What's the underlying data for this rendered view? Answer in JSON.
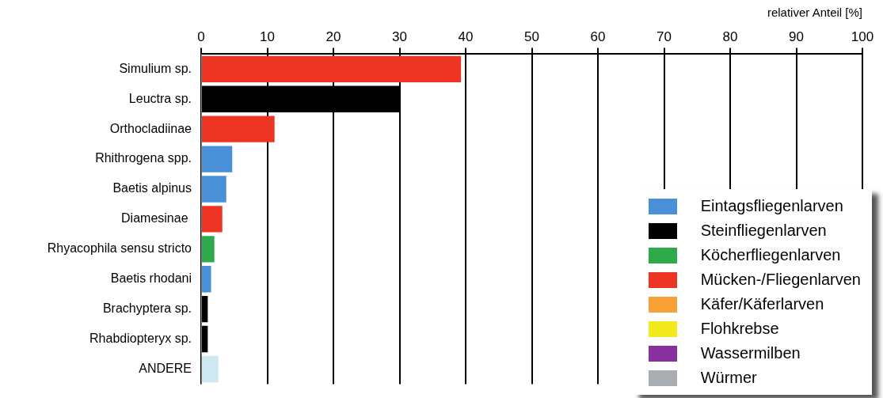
{
  "chart_data": {
    "type": "bar",
    "orientation": "horizontal",
    "stacked": true,
    "xlabel": "relativer Anteil [%]",
    "categories": [
      "Simulium sp.",
      "Leuctra sp.",
      "Orthocladiinae",
      "Rhithrogena spp.",
      "Baetis alpinus",
      "Diamesinae ",
      "Rhyacophila sensu stricto",
      "Baetis rhodani",
      "Brachyptera sp.",
      "Rhabdiopteryx sp.",
      "ANDERE"
    ],
    "xlim": [
      0,
      100
    ],
    "xticks": [
      0,
      10,
      20,
      30,
      40,
      50,
      60,
      70,
      80,
      90,
      100
    ],
    "grid": "x",
    "legend": "bottom right",
    "series": [
      {
        "name": "Eintagsfliegenlarven",
        "color": "#4a90d9",
        "values": [
          null,
          null,
          null,
          4.7,
          3.8,
          null,
          null,
          1.5,
          null,
          null,
          null
        ]
      },
      {
        "name": "Steinfliegenlarven",
        "color": "#000000",
        "values": [
          null,
          30,
          null,
          null,
          null,
          null,
          null,
          null,
          1.0,
          1.0,
          null
        ]
      },
      {
        "name": "Köcherfliegenlarven",
        "color": "#2eaa4a",
        "values": [
          null,
          null,
          null,
          null,
          null,
          null,
          2.0,
          null,
          null,
          null,
          null
        ]
      },
      {
        "name": "Mücken-/Fliegenlarven",
        "color": "#ee3524",
        "values": [
          39.3,
          null,
          11.1,
          null,
          null,
          3.2,
          null,
          null,
          null,
          null,
          null
        ]
      },
      {
        "name": "Käfer/Käferlarven",
        "color": "#f7a033",
        "values": [
          null,
          null,
          null,
          null,
          null,
          null,
          null,
          null,
          null,
          null,
          null
        ]
      },
      {
        "name": "Flohkrebse",
        "color": "#f2ea1c",
        "values": [
          null,
          null,
          null,
          null,
          null,
          null,
          null,
          null,
          null,
          null,
          null
        ]
      },
      {
        "name": "Wassermilben",
        "color": "#8a2f9e",
        "values": [
          null,
          null,
          null,
          null,
          null,
          null,
          null,
          null,
          null,
          null,
          null
        ]
      },
      {
        "name": "Würmer",
        "color": "#a9aeb3",
        "values": [
          null,
          null,
          null,
          null,
          null,
          null,
          null,
          null,
          null,
          null,
          null
        ]
      },
      {
        "color": "#cde8f0",
        "values": [
          null,
          null,
          null,
          null,
          null,
          null,
          null,
          null,
          null,
          null,
          2.6
        ]
      }
    ]
  }
}
